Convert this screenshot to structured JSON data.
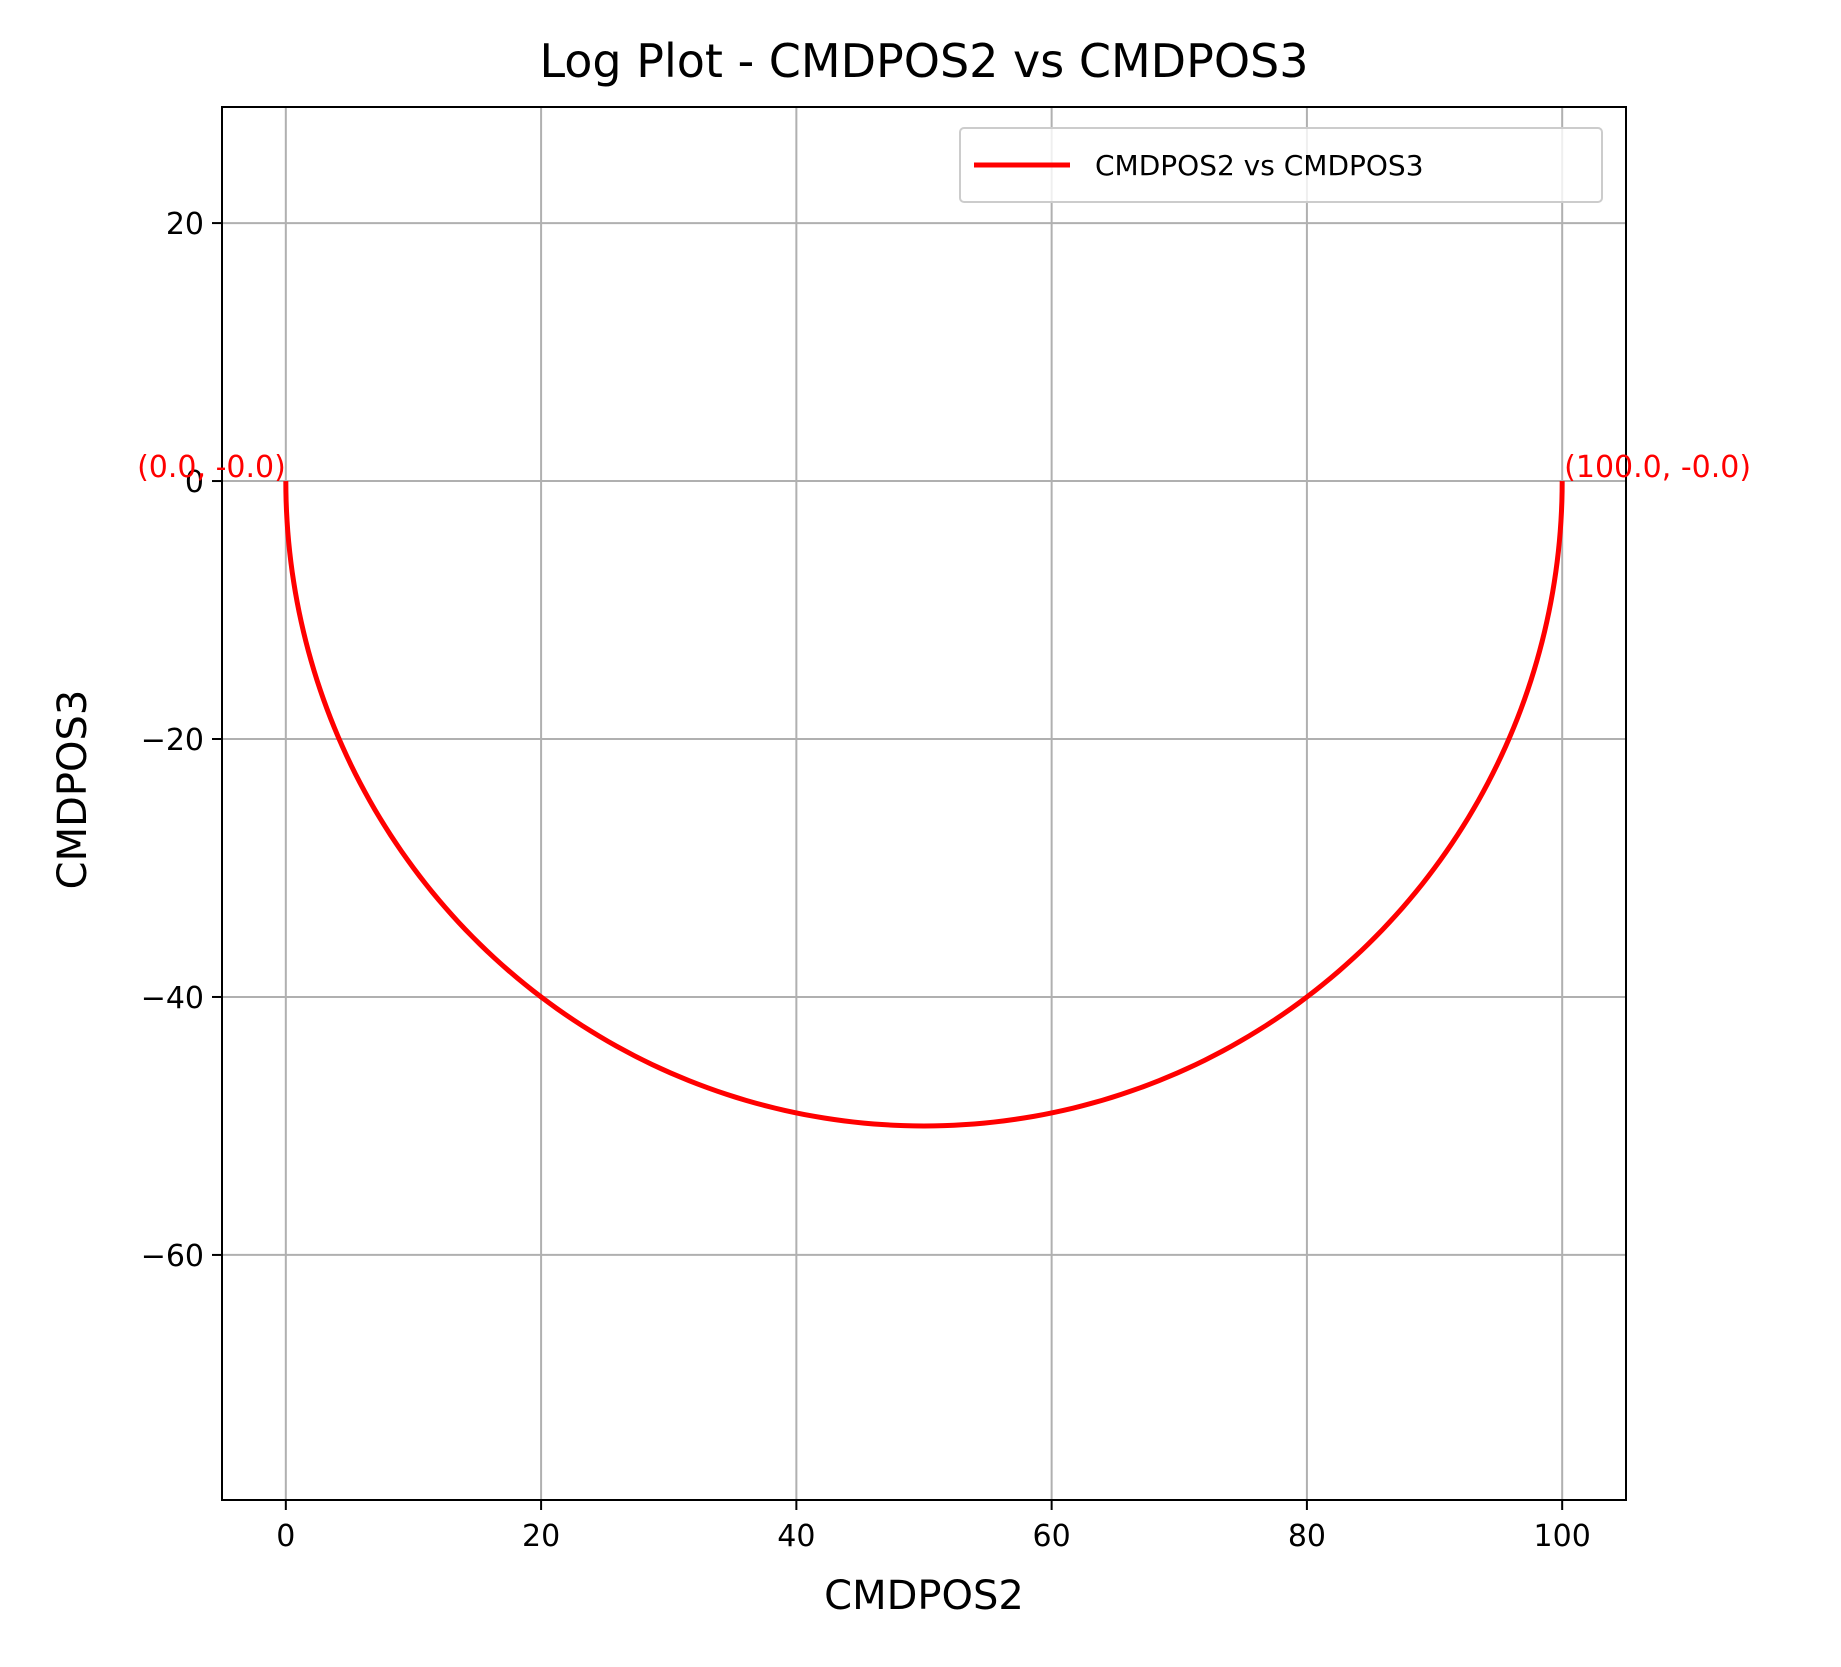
{
  "chart_data": {
    "type": "line",
    "title": "Log Plot - CMDPOS2 vs CMDPOS3",
    "xlabel": "CMDPOS2",
    "ylabel": "CMDPOS3",
    "xlim": [
      -5,
      105
    ],
    "ylim": [
      -79,
      29
    ],
    "x_ticks": [
      0,
      20,
      40,
      60,
      80,
      100
    ],
    "y_ticks": [
      20,
      0,
      -20,
      -40,
      -60
    ],
    "x_tick_labels": [
      "0",
      "20",
      "40",
      "60",
      "80",
      "100"
    ],
    "y_tick_labels": [
      "20",
      "0",
      "−20",
      "−40",
      "−60"
    ],
    "grid": true,
    "legend_position": "top-right",
    "series": [
      {
        "name": "CMDPOS2 vs CMDPOS3",
        "color": "#ff0000",
        "shape": "semicircle",
        "center": [
          50,
          0
        ],
        "radius": 50,
        "start": [
          0.0,
          -0.0
        ],
        "end": [
          100.0,
          -0.0
        ]
      }
    ],
    "annotations": [
      {
        "text": "(0.0, -0.0)",
        "x": 0.0,
        "y": 0.0,
        "anchor": "end",
        "color": "#ff0000"
      },
      {
        "text": "(100.0, -0.0)",
        "x": 100.0,
        "y": 0.0,
        "anchor": "start",
        "color": "#ff0000"
      }
    ]
  }
}
